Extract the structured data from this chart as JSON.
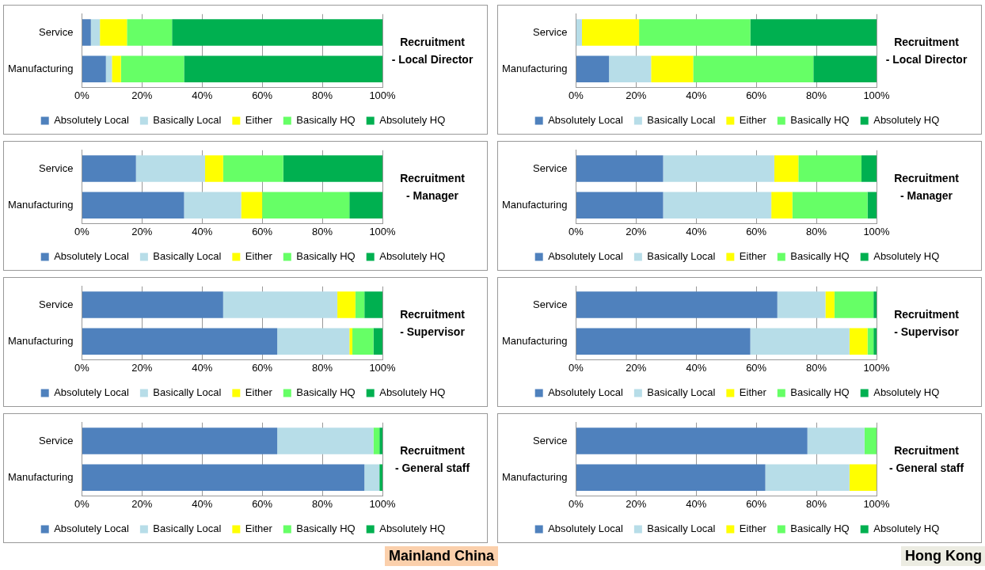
{
  "chart_data": [
    {
      "type": "bar",
      "orientation": "horizontal",
      "stacked": true,
      "title": "Recruitment\n- Local Director",
      "categories": [
        "Service",
        "Manufacturing"
      ],
      "series": [
        {
          "name": "Absolutely Local",
          "color": "#4f81bd",
          "values": [
            3,
            8
          ]
        },
        {
          "name": "Basically Local",
          "color": "#b7dde8",
          "values": [
            3,
            2
          ]
        },
        {
          "name": "Either",
          "color": "#ffff00",
          "values": [
            9,
            3
          ]
        },
        {
          "name": "Basically HQ",
          "color": "#66ff66",
          "values": [
            15,
            21
          ]
        },
        {
          "name": "Absolutely HQ",
          "color": "#00b050",
          "values": [
            70,
            66
          ]
        }
      ],
      "xlim": [
        0,
        100
      ],
      "xticks": [
        {
          "value": 0,
          "label": "0%"
        },
        {
          "value": 20,
          "label": "20%"
        },
        {
          "value": 40,
          "label": "40%"
        },
        {
          "value": 60,
          "label": "60%"
        },
        {
          "value": 80,
          "label": "80%"
        },
        {
          "value": 100,
          "label": "100%"
        }
      ],
      "grid": "x",
      "legend": "bottom"
    },
    {
      "type": "bar",
      "orientation": "horizontal",
      "stacked": true,
      "title": "Recruitment\n- Local Director",
      "categories": [
        "Service",
        "Manufacturing"
      ],
      "series": [
        {
          "name": "Absolutely Local",
          "color": "#4f81bd",
          "values": [
            0,
            11
          ]
        },
        {
          "name": "Basically Local",
          "color": "#b7dde8",
          "values": [
            2,
            14
          ]
        },
        {
          "name": "Either",
          "color": "#ffff00",
          "values": [
            19,
            14
          ]
        },
        {
          "name": "Basically HQ",
          "color": "#66ff66",
          "values": [
            37,
            40
          ]
        },
        {
          "name": "Absolutely HQ",
          "color": "#00b050",
          "values": [
            42,
            21
          ]
        }
      ],
      "xlim": [
        0,
        100
      ],
      "xticks": [
        {
          "value": 0,
          "label": "0%"
        },
        {
          "value": 20,
          "label": "20%"
        },
        {
          "value": 40,
          "label": "40%"
        },
        {
          "value": 60,
          "label": "60%"
        },
        {
          "value": 80,
          "label": "80%"
        },
        {
          "value": 100,
          "label": "100%"
        }
      ],
      "grid": "x",
      "legend": "bottom"
    },
    {
      "type": "bar",
      "orientation": "horizontal",
      "stacked": true,
      "title": "Recruitment\n- Manager",
      "categories": [
        "Service",
        "Manufacturing"
      ],
      "series": [
        {
          "name": "Absolutely Local",
          "color": "#4f81bd",
          "values": [
            18,
            34
          ]
        },
        {
          "name": "Basically Local",
          "color": "#b7dde8",
          "values": [
            23,
            19
          ]
        },
        {
          "name": "Either",
          "color": "#ffff00",
          "values": [
            6,
            7
          ]
        },
        {
          "name": "Basically HQ",
          "color": "#66ff66",
          "values": [
            20,
            29
          ]
        },
        {
          "name": "Absolutely HQ",
          "color": "#00b050",
          "values": [
            33,
            11
          ]
        }
      ],
      "xlim": [
        0,
        100
      ],
      "xticks": [
        {
          "value": 0,
          "label": "0%"
        },
        {
          "value": 20,
          "label": "20%"
        },
        {
          "value": 40,
          "label": "40%"
        },
        {
          "value": 60,
          "label": "60%"
        },
        {
          "value": 80,
          "label": "80%"
        },
        {
          "value": 100,
          "label": "100%"
        }
      ],
      "grid": "x",
      "legend": "bottom"
    },
    {
      "type": "bar",
      "orientation": "horizontal",
      "stacked": true,
      "title": "Recruitment\n- Manager",
      "categories": [
        "Service",
        "Manufacturing"
      ],
      "series": [
        {
          "name": "Absolutely Local",
          "color": "#4f81bd",
          "values": [
            29,
            29
          ]
        },
        {
          "name": "Basically Local",
          "color": "#b7dde8",
          "values": [
            37,
            36
          ]
        },
        {
          "name": "Either",
          "color": "#ffff00",
          "values": [
            8,
            7
          ]
        },
        {
          "name": "Basically HQ",
          "color": "#66ff66",
          "values": [
            21,
            25
          ]
        },
        {
          "name": "Absolutely HQ",
          "color": "#00b050",
          "values": [
            5,
            3
          ]
        }
      ],
      "xlim": [
        0,
        100
      ],
      "xticks": [
        {
          "value": 0,
          "label": "0%"
        },
        {
          "value": 20,
          "label": "20%"
        },
        {
          "value": 40,
          "label": "40%"
        },
        {
          "value": 60,
          "label": "60%"
        },
        {
          "value": 80,
          "label": "80%"
        },
        {
          "value": 100,
          "label": "100%"
        }
      ],
      "grid": "x",
      "legend": "bottom"
    },
    {
      "type": "bar",
      "orientation": "horizontal",
      "stacked": true,
      "title": "Recruitment\n- Supervisor",
      "categories": [
        "Service",
        "Manufacturing"
      ],
      "series": [
        {
          "name": "Absolutely Local",
          "color": "#4f81bd",
          "values": [
            47,
            65
          ]
        },
        {
          "name": "Basically Local",
          "color": "#b7dde8",
          "values": [
            38,
            24
          ]
        },
        {
          "name": "Either",
          "color": "#ffff00",
          "values": [
            6,
            1
          ]
        },
        {
          "name": "Basically HQ",
          "color": "#66ff66",
          "values": [
            3,
            7
          ]
        },
        {
          "name": "Absolutely HQ",
          "color": "#00b050",
          "values": [
            6,
            3
          ]
        }
      ],
      "xlim": [
        0,
        100
      ],
      "xticks": [
        {
          "value": 0,
          "label": "0%"
        },
        {
          "value": 20,
          "label": "20%"
        },
        {
          "value": 40,
          "label": "40%"
        },
        {
          "value": 60,
          "label": "60%"
        },
        {
          "value": 80,
          "label": "80%"
        },
        {
          "value": 100,
          "label": "100%"
        }
      ],
      "grid": "x",
      "legend": "bottom"
    },
    {
      "type": "bar",
      "orientation": "horizontal",
      "stacked": true,
      "title": "Recruitment\n- Supervisor",
      "categories": [
        "Service",
        "Manufacturing"
      ],
      "series": [
        {
          "name": "Absolutely Local",
          "color": "#4f81bd",
          "values": [
            67,
            58
          ]
        },
        {
          "name": "Basically Local",
          "color": "#b7dde8",
          "values": [
            16,
            33
          ]
        },
        {
          "name": "Either",
          "color": "#ffff00",
          "values": [
            3,
            6
          ]
        },
        {
          "name": "Basically HQ",
          "color": "#66ff66",
          "values": [
            13,
            2
          ]
        },
        {
          "name": "Absolutely HQ",
          "color": "#00b050",
          "values": [
            1,
            1
          ]
        }
      ],
      "xlim": [
        0,
        100
      ],
      "xticks": [
        {
          "value": 0,
          "label": "0%"
        },
        {
          "value": 20,
          "label": "20%"
        },
        {
          "value": 40,
          "label": "40%"
        },
        {
          "value": 60,
          "label": "60%"
        },
        {
          "value": 80,
          "label": "80%"
        },
        {
          "value": 100,
          "label": "100%"
        }
      ],
      "grid": "x",
      "legend": "bottom"
    },
    {
      "type": "bar",
      "orientation": "horizontal",
      "stacked": true,
      "title": "Recruitment\n- General staff",
      "categories": [
        "Service",
        "Manufacturing"
      ],
      "series": [
        {
          "name": "Absolutely Local",
          "color": "#4f81bd",
          "values": [
            65,
            94
          ]
        },
        {
          "name": "Basically Local",
          "color": "#b7dde8",
          "values": [
            32,
            5
          ]
        },
        {
          "name": "Either",
          "color": "#ffff00",
          "values": [
            0,
            0
          ]
        },
        {
          "name": "Basically HQ",
          "color": "#66ff66",
          "values": [
            2,
            0
          ]
        },
        {
          "name": "Absolutely HQ",
          "color": "#00b050",
          "values": [
            1,
            1
          ]
        }
      ],
      "xlim": [
        0,
        100
      ],
      "xticks": [
        {
          "value": 0,
          "label": "0%"
        },
        {
          "value": 20,
          "label": "20%"
        },
        {
          "value": 40,
          "label": "40%"
        },
        {
          "value": 60,
          "label": "60%"
        },
        {
          "value": 80,
          "label": "80%"
        },
        {
          "value": 100,
          "label": "100%"
        }
      ],
      "grid": "x",
      "legend": "bottom",
      "annotations": [
        "Mainland China"
      ]
    },
    {
      "type": "bar",
      "orientation": "horizontal",
      "stacked": true,
      "title": "Recruitment\n- General staff",
      "categories": [
        "Service",
        "Manufacturing"
      ],
      "series": [
        {
          "name": "Absolutely Local",
          "color": "#4f81bd",
          "values": [
            77,
            63
          ]
        },
        {
          "name": "Basically Local",
          "color": "#b7dde8",
          "values": [
            19,
            28
          ]
        },
        {
          "name": "Either",
          "color": "#ffff00",
          "values": [
            0,
            9
          ]
        },
        {
          "name": "Basically HQ",
          "color": "#66ff66",
          "values": [
            4,
            0
          ]
        },
        {
          "name": "Absolutely HQ",
          "color": "#00b050",
          "values": [
            0,
            0
          ]
        }
      ],
      "xlim": [
        0,
        100
      ],
      "xticks": [
        {
          "value": 0,
          "label": "0%"
        },
        {
          "value": 20,
          "label": "20%"
        },
        {
          "value": 40,
          "label": "40%"
        },
        {
          "value": 60,
          "label": "60%"
        },
        {
          "value": 80,
          "label": "80%"
        },
        {
          "value": 100,
          "label": "100%"
        }
      ],
      "grid": "x",
      "legend": "bottom",
      "annotations": [
        "Hong Kong"
      ]
    }
  ]
}
